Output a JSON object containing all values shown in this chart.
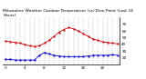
{
  "title": "Milwaukee Weather Outdoor Temperature (vs) Dew Point (Last 24 Hours)",
  "title_fontsize": 3.2,
  "title_color": "#000000",
  "background_color": "#ffffff",
  "plot_bg_color": "#ffffff",
  "grid_color": "#999999",
  "x_label_fontsize": 3.0,
  "y_label_fontsize": 3.0,
  "ylim": [
    10,
    80
  ],
  "yticks": [
    20,
    30,
    40,
    50,
    60,
    70
  ],
  "temp_x": [
    0,
    1,
    2,
    3,
    4,
    5,
    6,
    7,
    8,
    9,
    10,
    11,
    12,
    13,
    14,
    15,
    16,
    17,
    18,
    19,
    20,
    21,
    22,
    23
  ],
  "temp_y": [
    45,
    44,
    43,
    42,
    40,
    38,
    37,
    38,
    42,
    46,
    52,
    58,
    62,
    65,
    63,
    60,
    56,
    52,
    48,
    46,
    44,
    43,
    42,
    41
  ],
  "dew_x": [
    0,
    1,
    2,
    3,
    4,
    5,
    6,
    7,
    8,
    9,
    10,
    11,
    12,
    13,
    14,
    15,
    16,
    17,
    18,
    19,
    20,
    21,
    22,
    23
  ],
  "dew_y": [
    18,
    18,
    17,
    17,
    17,
    17,
    17,
    24,
    28,
    26,
    24,
    23,
    22,
    22,
    22,
    22,
    22,
    23,
    24,
    24,
    24,
    24,
    25,
    24
  ],
  "temp_color": "#cc0000",
  "dew_color": "#0000cc",
  "line_width": 0.6,
  "marker": ".",
  "marker_size": 1.2,
  "vgrid_x": [
    0,
    1,
    2,
    3,
    4,
    5,
    6,
    7,
    8,
    9,
    10,
    11,
    12,
    13,
    14,
    15,
    16,
    17,
    18,
    19,
    20,
    21,
    22,
    23
  ],
  "xtick_positions": [
    0,
    4,
    8,
    12,
    16,
    20
  ],
  "xtick_labels": [
    "0",
    "4",
    "8",
    "12",
    "16",
    "20"
  ]
}
